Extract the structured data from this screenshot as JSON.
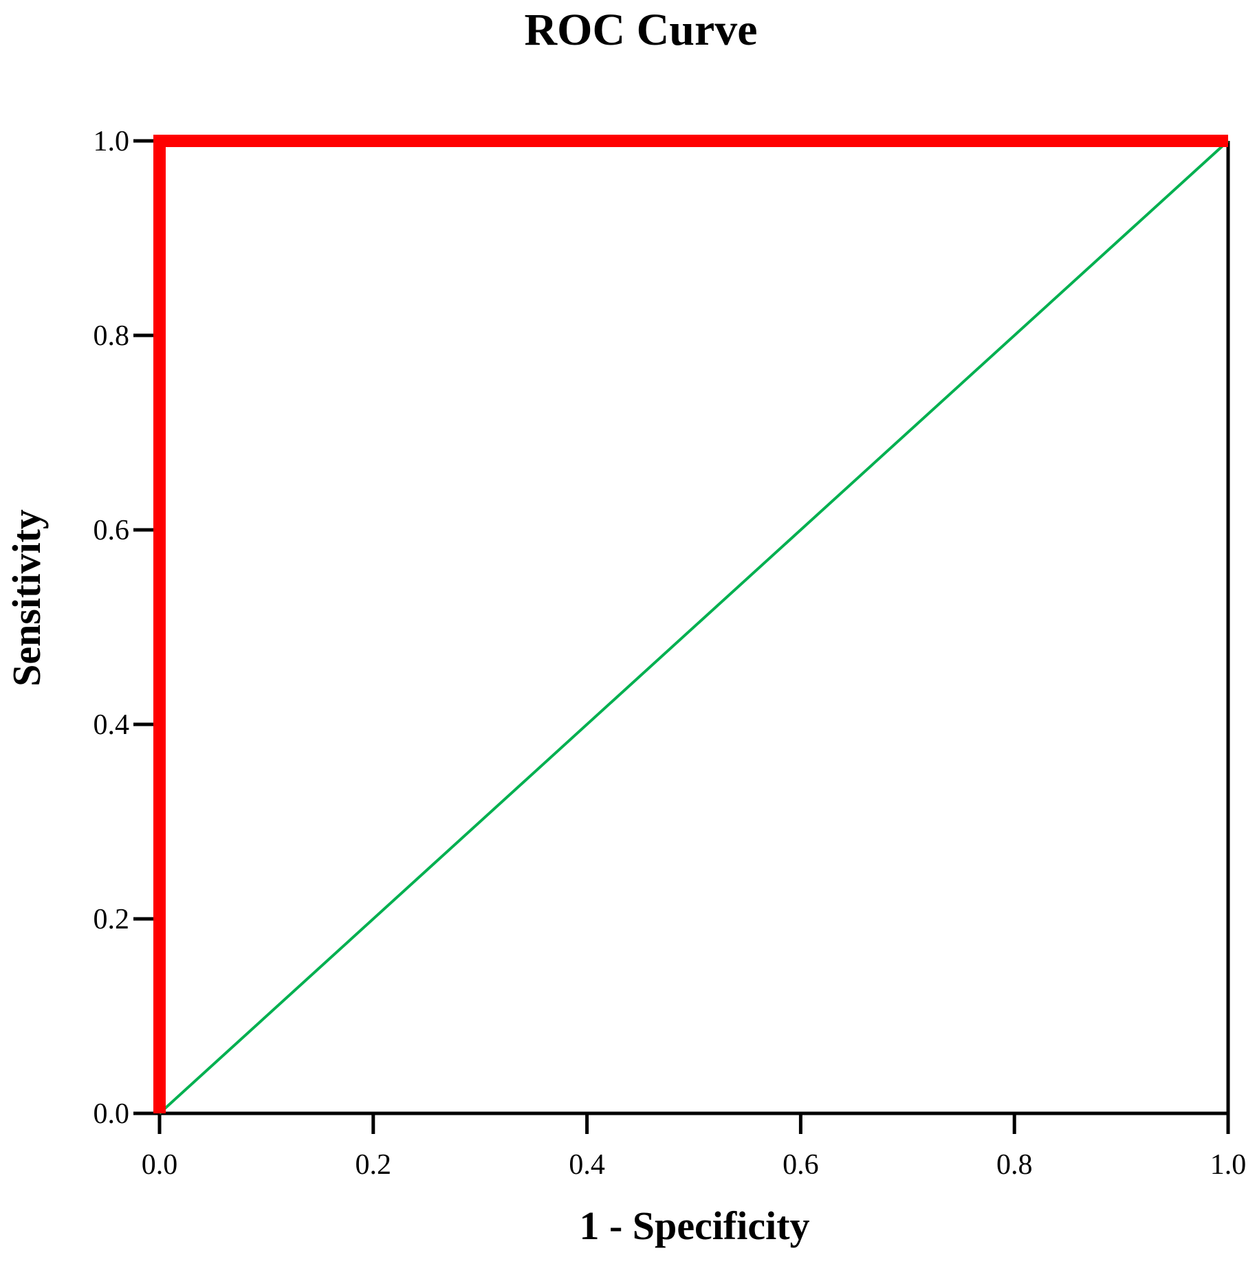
{
  "chart_data": {
    "type": "line",
    "title": "ROC Curve",
    "xlabel": "1 - Specificity",
    "ylabel": "Sensitivity",
    "xlim": [
      0.0,
      1.0
    ],
    "ylim": [
      0.0,
      1.0
    ],
    "xticks": [
      "0.0",
      "0.2",
      "0.4",
      "0.6",
      "0.8",
      "1.0"
    ],
    "yticks": [
      "0.0",
      "0.2",
      "0.4",
      "0.6",
      "0.8",
      "1.0"
    ],
    "grid": false,
    "legend": "none",
    "series": [
      {
        "x": [
          0.0,
          0.0,
          1.0
        ],
        "y": [
          0.0,
          1.0,
          1.0
        ],
        "color": "#ff0000"
      },
      {
        "x": [
          0.0,
          1.0
        ],
        "y": [
          0.0,
          1.0
        ],
        "color": "#00b050"
      }
    ]
  }
}
